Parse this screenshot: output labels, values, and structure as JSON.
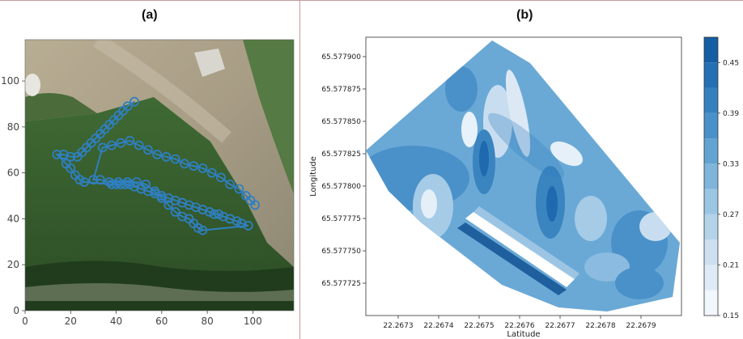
{
  "panels": {
    "a": {
      "label": "(a)"
    },
    "b": {
      "label": "(b)"
    }
  },
  "chart_data": [
    {
      "type": "line",
      "title": "",
      "xlabel": "",
      "ylabel": "",
      "xlim": [
        0,
        118
      ],
      "ylim": [
        0,
        118
      ],
      "x_ticks": [
        0,
        20,
        40,
        60,
        80,
        100
      ],
      "y_ticks": [
        0,
        20,
        40,
        60,
        80,
        100
      ],
      "x_tick_labels": [
        "0",
        "20",
        "40",
        "60",
        "80",
        "100"
      ],
      "y_tick_labels": [
        "0",
        "20",
        "40",
        "60",
        "80",
        "100"
      ],
      "background": "aerial image",
      "grid": false,
      "marker": "circle",
      "color": "#2f7fc0",
      "series": [
        {
          "x": [
            48,
            45,
            43,
            41,
            39,
            37,
            35,
            33,
            31,
            29,
            27,
            25,
            23,
            20,
            17,
            14,
            18,
            20,
            22,
            24,
            26,
            38,
            40,
            42,
            44,
            46,
            48,
            51,
            54,
            57,
            60,
            63,
            66,
            69,
            72,
            75,
            78,
            81,
            83,
            85,
            87,
            90,
            93,
            95,
            98,
            78,
            76,
            74,
            72,
            69,
            66,
            63,
            60,
            57,
            53,
            49,
            45,
            41,
            37,
            33,
            30,
            34,
            38,
            42,
            46,
            50,
            54,
            58,
            62,
            66,
            70,
            74,
            78,
            82,
            86,
            90,
            94,
            97,
            99,
            101
          ],
          "y": [
            91,
            89,
            87,
            85,
            83,
            81,
            79,
            77,
            75,
            73,
            71,
            69,
            67,
            67,
            68,
            68,
            64,
            62,
            59,
            57,
            56,
            55,
            55,
            55,
            55,
            55,
            54,
            53,
            52,
            51,
            50,
            49,
            48,
            47,
            46,
            45,
            44,
            43,
            42,
            42,
            41,
            40,
            39,
            38,
            37,
            35,
            36,
            38,
            40,
            41,
            43,
            46,
            49,
            52,
            55,
            56,
            56,
            56,
            56,
            57,
            57,
            71,
            72,
            73,
            74,
            72,
            70,
            68,
            67,
            66,
            64,
            63,
            62,
            60,
            58,
            55,
            53,
            50,
            48,
            46
          ]
        }
      ]
    },
    {
      "type": "heatmap",
      "subtype": "filled contour",
      "title": "",
      "xlabel": "Latitude",
      "ylabel": "Longitude",
      "x_ticks": [
        "22.2673",
        "22.2674",
        "22.2675",
        "22.2676",
        "22.2677",
        "22.2678",
        "22.2679"
      ],
      "y_ticks": [
        "65.577900",
        "65.577875",
        "65.577850",
        "65.577825",
        "65.577800",
        "65.577775",
        "65.577750",
        "65.577725"
      ],
      "xlim": [
        22.26722,
        22.268
      ],
      "ylim": [
        65.5777,
        65.577915
      ],
      "colormap": "Blues",
      "colorbar": {
        "levels": [
          0.15,
          0.18,
          0.21,
          0.24,
          0.27,
          0.3,
          0.33,
          0.36,
          0.39,
          0.42,
          0.45,
          0.48
        ],
        "tick_labels": [
          "0.15",
          "0.21",
          "0.27",
          "0.33",
          "0.39",
          "0.45"
        ]
      }
    }
  ]
}
